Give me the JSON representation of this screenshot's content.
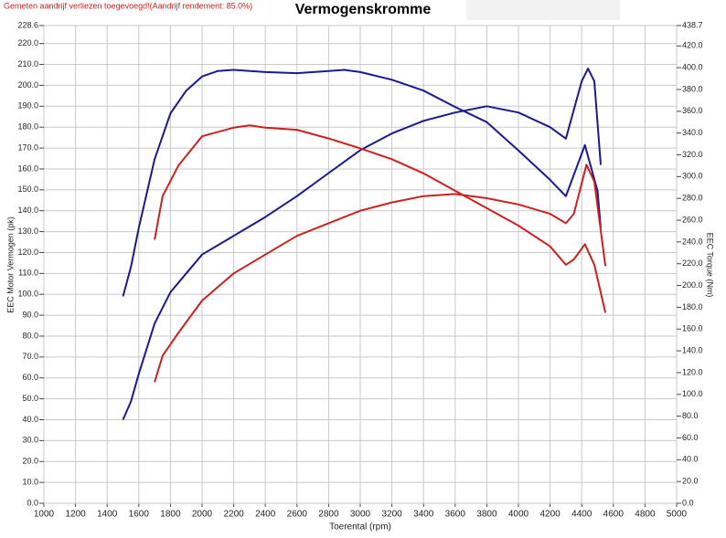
{
  "chart_data": {
    "type": "line",
    "title": "Vermogenskromme",
    "annotation": "Gemeten aandrijf verliezen toegevoegd!(Aandrijf rendement: 85.0%)",
    "x_label": "Toerental (rpm)",
    "y_label": "EEC Motor Vermogen (pk)",
    "y2_label": "EEC Torque (Nm)",
    "grid": true,
    "xlim": [
      1000,
      5000
    ],
    "xticks": [
      1000,
      1200,
      1400,
      1600,
      1800,
      2000,
      2200,
      2400,
      2600,
      2800,
      3000,
      3200,
      3400,
      3600,
      3800,
      4000,
      4200,
      4400,
      4600,
      4800,
      5000
    ],
    "ylim": [
      0,
      228.6
    ],
    "yticks": [
      {
        "value": 0,
        "label": "0.0"
      },
      {
        "value": 10,
        "label": "10.0"
      },
      {
        "value": 20,
        "label": "20.0"
      },
      {
        "value": 30,
        "label": "30.0"
      },
      {
        "value": 40,
        "label": "40.0"
      },
      {
        "value": 50,
        "label": "50.0"
      },
      {
        "value": 60,
        "label": "60.0"
      },
      {
        "value": 70,
        "label": "70.0"
      },
      {
        "value": 80,
        "label": "80.0"
      },
      {
        "value": 90,
        "label": "90.0"
      },
      {
        "value": 100,
        "label": "100.0"
      },
      {
        "value": 110,
        "label": "110.0"
      },
      {
        "value": 120,
        "label": "120.0"
      },
      {
        "value": 130,
        "label": "130.0"
      },
      {
        "value": 140,
        "label": "140.0"
      },
      {
        "value": 150,
        "label": "150.0"
      },
      {
        "value": 160,
        "label": "160.0"
      },
      {
        "value": 170,
        "label": "170.0"
      },
      {
        "value": 180,
        "label": "180.0"
      },
      {
        "value": 190,
        "label": "190.0"
      },
      {
        "value": 200,
        "label": "200.0"
      },
      {
        "value": 210,
        "label": "210.0"
      },
      {
        "value": 220,
        "label": "220.0"
      },
      228.6
    ],
    "y2lim": [
      0,
      438.7
    ],
    "y2ticks": [
      {
        "value": 0,
        "label": "0.0"
      },
      {
        "value": 20,
        "label": "20.0"
      },
      {
        "value": 40,
        "label": "40.0"
      },
      {
        "value": 60,
        "label": "60.0"
      },
      {
        "value": 80,
        "label": "80.0"
      },
      {
        "value": 100,
        "label": "100.0"
      },
      {
        "value": 120,
        "label": "120.0"
      },
      {
        "value": 140,
        "label": "140.0"
      },
      {
        "value": 160,
        "label": "160.0"
      },
      {
        "value": 180,
        "label": "180.0"
      },
      {
        "value": 200,
        "label": "200.0"
      },
      {
        "value": 220,
        "label": "220.0"
      },
      {
        "value": 240,
        "label": "240.0"
      },
      {
        "value": 260,
        "label": "260.0"
      },
      {
        "value": 280,
        "label": "280.0"
      },
      {
        "value": 300,
        "label": "300.0"
      },
      {
        "value": 320,
        "label": "320.0"
      },
      {
        "value": 340,
        "label": "340.0"
      },
      {
        "value": 360,
        "label": "360.0"
      },
      {
        "value": 380,
        "label": "380.0"
      },
      {
        "value": 400,
        "label": "400.0"
      },
      {
        "value": 420,
        "label": "420.0"
      },
      438.7
    ],
    "series": [
      {
        "color": "#1a1a8c",
        "axis": "y",
        "x": [
          1500,
          1550,
          1600,
          1700,
          1800,
          1900,
          2000,
          2200,
          2400,
          2600,
          2800,
          3000,
          3200,
          3400,
          3600,
          3800,
          4000,
          4200,
          4300,
          4400,
          4440,
          4480,
          4520
        ],
        "values": [
          40,
          48.7,
          62,
          86,
          101,
          110,
          119,
          128,
          137,
          147,
          158,
          169,
          177,
          183,
          187,
          190,
          187,
          180,
          174.5,
          202,
          208,
          202,
          162
        ]
      },
      {
        "color": "#1a1a8c",
        "axis": "y2",
        "x": [
          1500,
          1550,
          1600,
          1700,
          1800,
          1900,
          2000,
          2100,
          2200,
          2400,
          2600,
          2800,
          2900,
          3000,
          3200,
          3400,
          3600,
          3800,
          4000,
          4200,
          4300,
          4420,
          4500,
          4520
        ],
        "values": [
          190,
          217,
          253,
          316,
          358,
          379,
          392,
          397,
          398,
          396,
          395,
          397,
          398,
          396,
          389,
          379,
          364,
          350,
          324,
          297,
          282,
          329,
          287,
          253
        ]
      },
      {
        "color": "#cc2020",
        "axis": "y",
        "x": [
          1700,
          1750,
          1850,
          2000,
          2200,
          2400,
          2600,
          2800,
          3000,
          3200,
          3400,
          3600,
          3800,
          4000,
          4200,
          4300,
          4350,
          4430,
          4480,
          4550
        ],
        "values": [
          58,
          70.6,
          81.5,
          97,
          110,
          119,
          128,
          134,
          140,
          144,
          147,
          148,
          146,
          143,
          138.5,
          134,
          138.5,
          162,
          154,
          113.5
        ]
      },
      {
        "color": "#cc2020",
        "axis": "y2",
        "x": [
          1700,
          1750,
          1850,
          2000,
          2200,
          2300,
          2400,
          2600,
          2800,
          3000,
          3200,
          3400,
          3600,
          3800,
          4000,
          4200,
          4300,
          4350,
          4420,
          4480,
          4550
        ],
        "values": [
          242,
          282,
          310,
          337,
          345,
          347,
          345,
          343,
          335,
          326,
          316,
          303,
          287,
          271,
          255,
          236,
          219,
          224,
          238,
          219,
          175
        ]
      }
    ]
  }
}
